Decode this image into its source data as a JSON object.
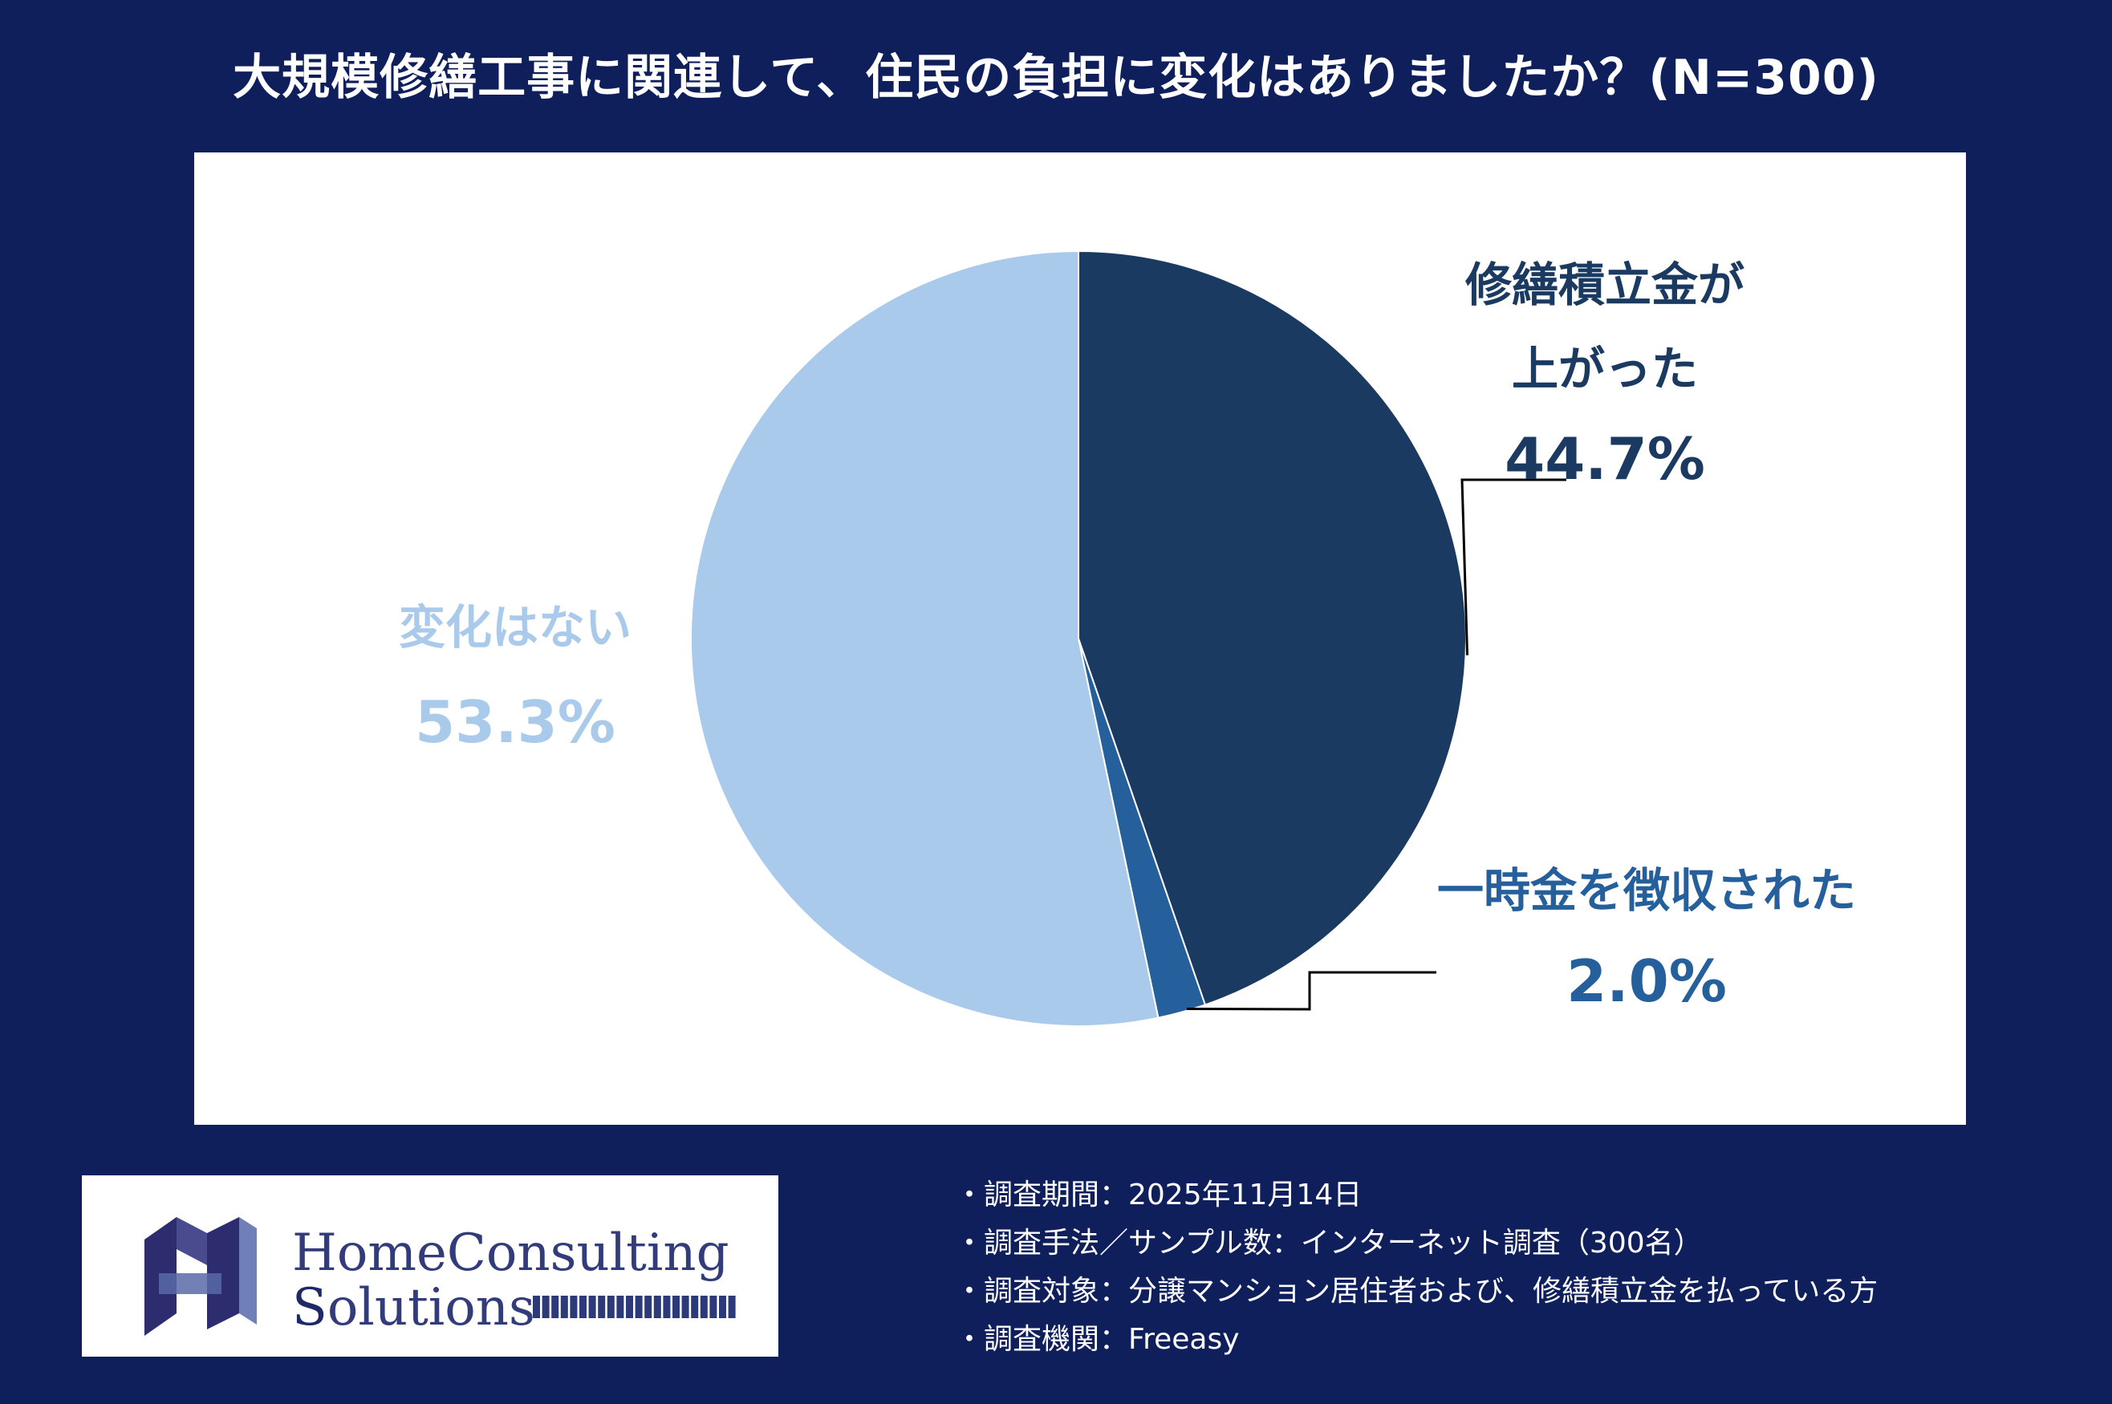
{
  "title": "大規模修繕工事に関連して、住民の負担に変化はありましたか？(N=300)",
  "chart_data": {
    "type": "pie",
    "start_angle_deg": 0,
    "direction": "clockwise",
    "slices": [
      {
        "label": "修繕積立金が上がった",
        "label_lines": [
          "修繕積立金が",
          "上がった"
        ],
        "value": 44.7,
        "value_label": "44.7%",
        "color": "#1a3a61"
      },
      {
        "label": "一時金を徴収された",
        "label_lines": [
          "一時金を徴収された"
        ],
        "value": 2.0,
        "value_label": "2.0%",
        "color": "#255f9c"
      },
      {
        "label": "変化はない",
        "label_lines": [
          "変化はない"
        ],
        "value": 53.3,
        "value_label": "53.3%",
        "color": "#a9caea"
      }
    ]
  },
  "logo": {
    "mark": "HS",
    "line1": "HomeConsulting",
    "line2": "Solutions"
  },
  "notes": [
    "・調査期間：2025年11月14日",
    "・調査手法／サンプル数：インターネット調査（300名）",
    "・調査対象：分譲マンション居住者および、修繕積立金を払っている方",
    "・調査機関：Freeasy"
  ],
  "colors": {
    "background": "#0e1f5b",
    "panel": "#ffffff"
  }
}
